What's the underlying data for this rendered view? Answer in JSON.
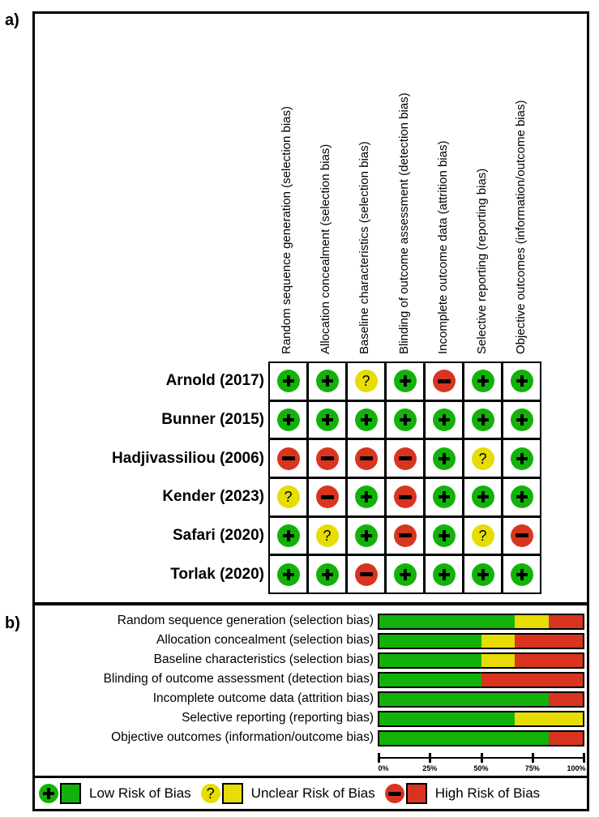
{
  "panel_a": {
    "label": "a)",
    "domains": [
      "Random sequence generation (selection bias)",
      "Allocation concealment (selection bias)",
      "Baseline characteristics (selection bias)",
      "Blinding of outcome assessment (detection bias)",
      "Incomplete outcome data (attrition bias)",
      "Selective reporting (reporting bias)",
      "Objective outcomes (information/outcome bias)"
    ],
    "studies": [
      {
        "name": "Arnold (2017)",
        "ratings": [
          "low",
          "low",
          "unclear",
          "low",
          "high",
          "low",
          "low"
        ]
      },
      {
        "name": "Bunner (2015)",
        "ratings": [
          "low",
          "low",
          "low",
          "low",
          "low",
          "low",
          "low"
        ]
      },
      {
        "name": "Hadjivassiliou (2006)",
        "ratings": [
          "high",
          "high",
          "high",
          "high",
          "low",
          "unclear",
          "low"
        ]
      },
      {
        "name": "Kender (2023)",
        "ratings": [
          "unclear",
          "high",
          "low",
          "high",
          "low",
          "low",
          "low"
        ]
      },
      {
        "name": "Safari (2020)",
        "ratings": [
          "low",
          "unclear",
          "low",
          "high",
          "low",
          "unclear",
          "high"
        ]
      },
      {
        "name": "Torlak (2020)",
        "ratings": [
          "low",
          "low",
          "high",
          "low",
          "low",
          "low",
          "low"
        ]
      }
    ]
  },
  "panel_b": {
    "label": "b)",
    "axis_ticks": [
      "0%",
      "25%",
      "50%",
      "75%",
      "100%"
    ]
  },
  "legend": {
    "low": "Low Risk of Bias",
    "unclear": "Unclear Risk of Bias",
    "high": "High Risk of Bias"
  },
  "colors": {
    "low": "#13b20a",
    "unclear": "#e6dc06",
    "high": "#d93420"
  },
  "chart_data": [
    {
      "type": "table",
      "title": "Risk of bias summary",
      "columns": [
        "Random sequence generation (selection bias)",
        "Allocation concealment (selection bias)",
        "Baseline characteristics (selection bias)",
        "Blinding of outcome assessment (detection bias)",
        "Incomplete outcome data (attrition bias)",
        "Selective reporting (reporting bias)",
        "Objective outcomes (information/outcome bias)"
      ],
      "rows": [
        {
          "study": "Arnold (2017)",
          "values": [
            "+",
            "+",
            "?",
            "+",
            "-",
            "+",
            "+"
          ]
        },
        {
          "study": "Bunner (2015)",
          "values": [
            "+",
            "+",
            "+",
            "+",
            "+",
            "+",
            "+"
          ]
        },
        {
          "study": "Hadjivassiliou (2006)",
          "values": [
            "-",
            "-",
            "-",
            "-",
            "+",
            "?",
            "+"
          ]
        },
        {
          "study": "Kender (2023)",
          "values": [
            "?",
            "-",
            "+",
            "-",
            "+",
            "+",
            "+"
          ]
        },
        {
          "study": "Safari (2020)",
          "values": [
            "+",
            "?",
            "+",
            "-",
            "+",
            "?",
            "-"
          ]
        },
        {
          "study": "Torlak (2020)",
          "values": [
            "+",
            "+",
            "-",
            "+",
            "+",
            "+",
            "+"
          ]
        }
      ],
      "legend": {
        "+": "Low Risk of Bias",
        "?": "Unclear Risk of Bias",
        "-": "High Risk of Bias"
      }
    },
    {
      "type": "bar",
      "orientation": "horizontal",
      "stacked": true,
      "title": "Risk of bias graph",
      "categories": [
        "Random sequence generation (selection bias)",
        "Allocation concealment (selection bias)",
        "Baseline characteristics (selection bias)",
        "Blinding of outcome assessment (detection bias)",
        "Incomplete outcome data (attrition bias)",
        "Selective reporting (reporting bias)",
        "Objective outcomes (information/outcome bias)"
      ],
      "series": [
        {
          "name": "Low Risk of Bias",
          "color": "#13b20a",
          "values": [
            66.7,
            50.0,
            50.0,
            50.0,
            83.3,
            66.7,
            83.3
          ]
        },
        {
          "name": "Unclear Risk of Bias",
          "color": "#e6dc06",
          "values": [
            16.7,
            16.7,
            16.7,
            0,
            0,
            33.3,
            0
          ]
        },
        {
          "name": "High Risk of Bias",
          "color": "#d93420",
          "values": [
            16.7,
            33.3,
            33.3,
            50.0,
            16.7,
            0,
            16.7
          ]
        }
      ],
      "xlim": [
        0,
        100
      ],
      "xticks": [
        "0%",
        "25%",
        "50%",
        "75%",
        "100%"
      ],
      "legend_position": "bottom"
    }
  ]
}
